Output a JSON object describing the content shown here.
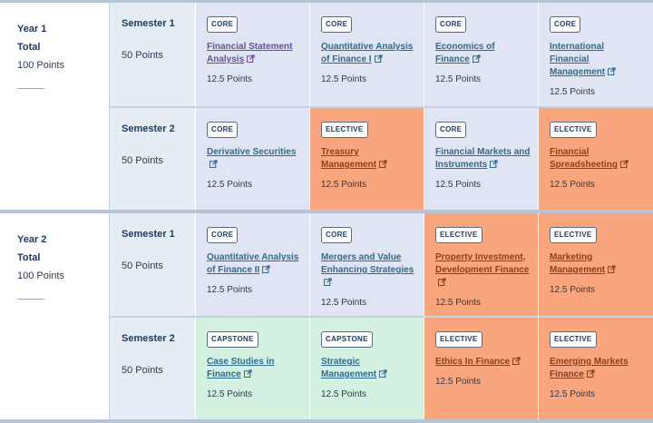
{
  "years": [
    {
      "title": "Year 1",
      "total_label": "Total",
      "points": "100 Points",
      "semesters": [
        {
          "title": "Semester 1",
          "points": "50 Points",
          "courses": [
            {
              "type": "CORE",
              "name": "Financial Statement Analysis",
              "points": "12.5 Points"
            },
            {
              "type": "CORE",
              "name": "Quantitative Analysis of Finance I",
              "points": "12.5 Points"
            },
            {
              "type": "CORE",
              "name": "Economics of Finance",
              "points": "12.5 Points"
            },
            {
              "type": "CORE",
              "name": "International Financial Management",
              "points": "12.5 Points"
            }
          ]
        },
        {
          "title": "Semester 2",
          "points": "50 Points",
          "courses": [
            {
              "type": "CORE",
              "name": "Derivative Securities",
              "points": "12.5 Points"
            },
            {
              "type": "ELECTIVE",
              "name": "Treasury Management",
              "points": "12.5 Points"
            },
            {
              "type": "CORE",
              "name": "Financial Markets and Instruments",
              "points": "12.5 Points"
            },
            {
              "type": "ELECTIVE",
              "name": "Financial Spreadsheeting",
              "points": "12.5 Points"
            }
          ]
        }
      ]
    },
    {
      "title": "Year 2",
      "total_label": "Total",
      "points": "100 Points",
      "semesters": [
        {
          "title": "Semester 1",
          "points": "50 Points",
          "courses": [
            {
              "type": "CORE",
              "name": "Quantitative Analysis of Finance II",
              "points": "12.5 Points"
            },
            {
              "type": "CORE",
              "name": "Mergers and Value Enhancing Strategies",
              "points": "12.5 Points"
            },
            {
              "type": "ELECTIVE",
              "name": "Property Investment, Development Finance",
              "points": "12.5 Points"
            },
            {
              "type": "ELECTIVE",
              "name": "Marketing Management",
              "points": "12.5 Points"
            }
          ]
        },
        {
          "title": "Semester 2",
          "points": "50 Points",
          "courses": [
            {
              "type": "CAPSTONE",
              "name": "Case Studies in Finance",
              "points": "12.5 Points"
            },
            {
              "type": "CAPSTONE",
              "name": "Strategic Management",
              "points": "12.5 Points"
            },
            {
              "type": "ELECTIVE",
              "name": "Ethics In Finance",
              "points": "12.5 Points"
            },
            {
              "type": "ELECTIVE",
              "name": "Emerging Markets Finance",
              "points": "12.5 Points"
            }
          ]
        }
      ]
    }
  ],
  "icons": {
    "external_link": "external-link-icon"
  },
  "colors": {
    "core": "#dfe5f3",
    "elective": "#f9a67f",
    "capstone": "#d3f0e1",
    "semester_bg": "#e6ecf4",
    "heading_text": "#1e3a5c"
  }
}
